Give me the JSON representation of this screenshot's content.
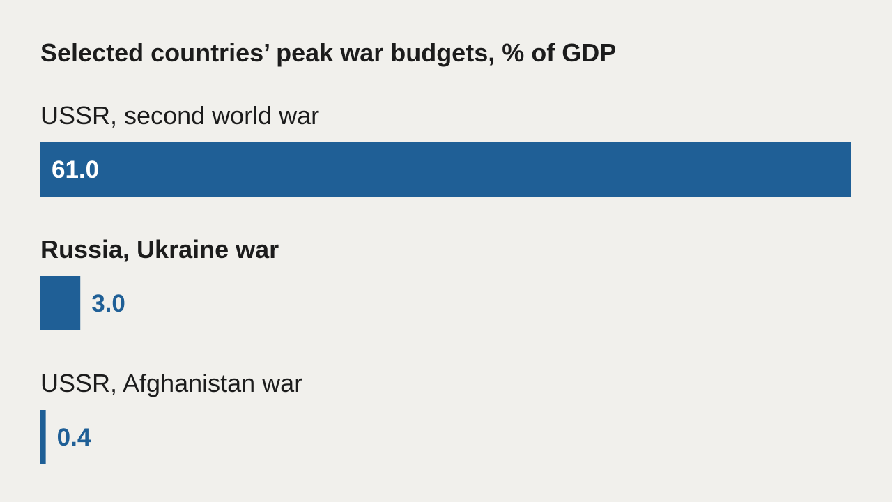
{
  "chart_data": {
    "type": "bar",
    "orientation": "horizontal",
    "title": "Selected countries’ peak war budgets, % of GDP",
    "categories": [
      "USSR, second world war",
      "Russia, Ukraine war",
      "USSR, Afghanistan war"
    ],
    "values": [
      61.0,
      3.0,
      0.4
    ],
    "value_labels": [
      "61.0",
      "3.0",
      "0.4"
    ],
    "highlight": [
      false,
      true,
      false
    ],
    "xlim": [
      0,
      61.0
    ],
    "xlabel": "",
    "ylabel": "",
    "grid": false,
    "legend": "none",
    "colors": {
      "bar": "#1f5f96",
      "label_inside": "#ffffff",
      "label_outside": "#1f5f96",
      "text": "#1c1c1c",
      "background": "#f1f0ec"
    }
  }
}
